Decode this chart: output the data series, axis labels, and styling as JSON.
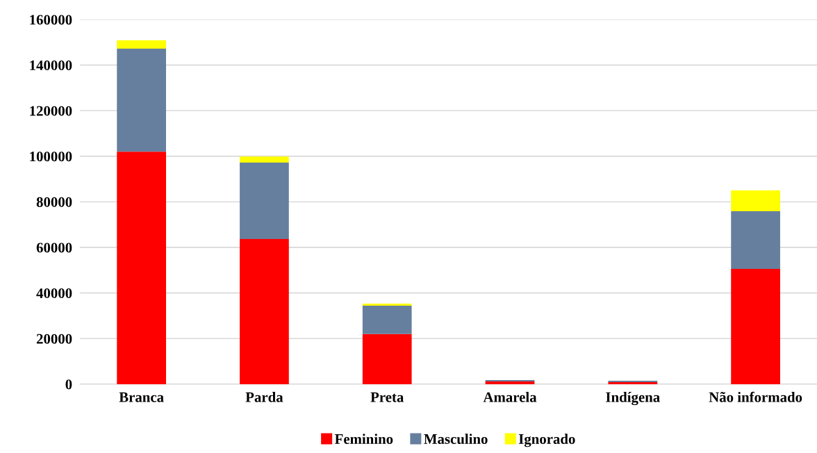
{
  "chart_data": {
    "type": "bar",
    "stacked": true,
    "categories": [
      "Branca",
      "Parda",
      "Preta",
      "Amarela",
      "Indígena",
      "Não informado"
    ],
    "series": [
      {
        "name": "Feminino",
        "color": "#ff0000",
        "values": [
          102000,
          63700,
          22000,
          1200,
          900,
          50600
        ]
      },
      {
        "name": "Masculino",
        "color": "#667f9e",
        "values": [
          45200,
          33500,
          12400,
          600,
          600,
          25300
        ]
      },
      {
        "name": "Ignorado",
        "color": "#ffff00",
        "values": [
          3700,
          2700,
          900,
          null,
          null,
          9100
        ]
      }
    ],
    "ylim": [
      0,
      160000
    ],
    "yticks": [
      0,
      20000,
      40000,
      60000,
      80000,
      100000,
      120000,
      140000,
      160000
    ],
    "grid": "y",
    "legend": "bottom"
  }
}
